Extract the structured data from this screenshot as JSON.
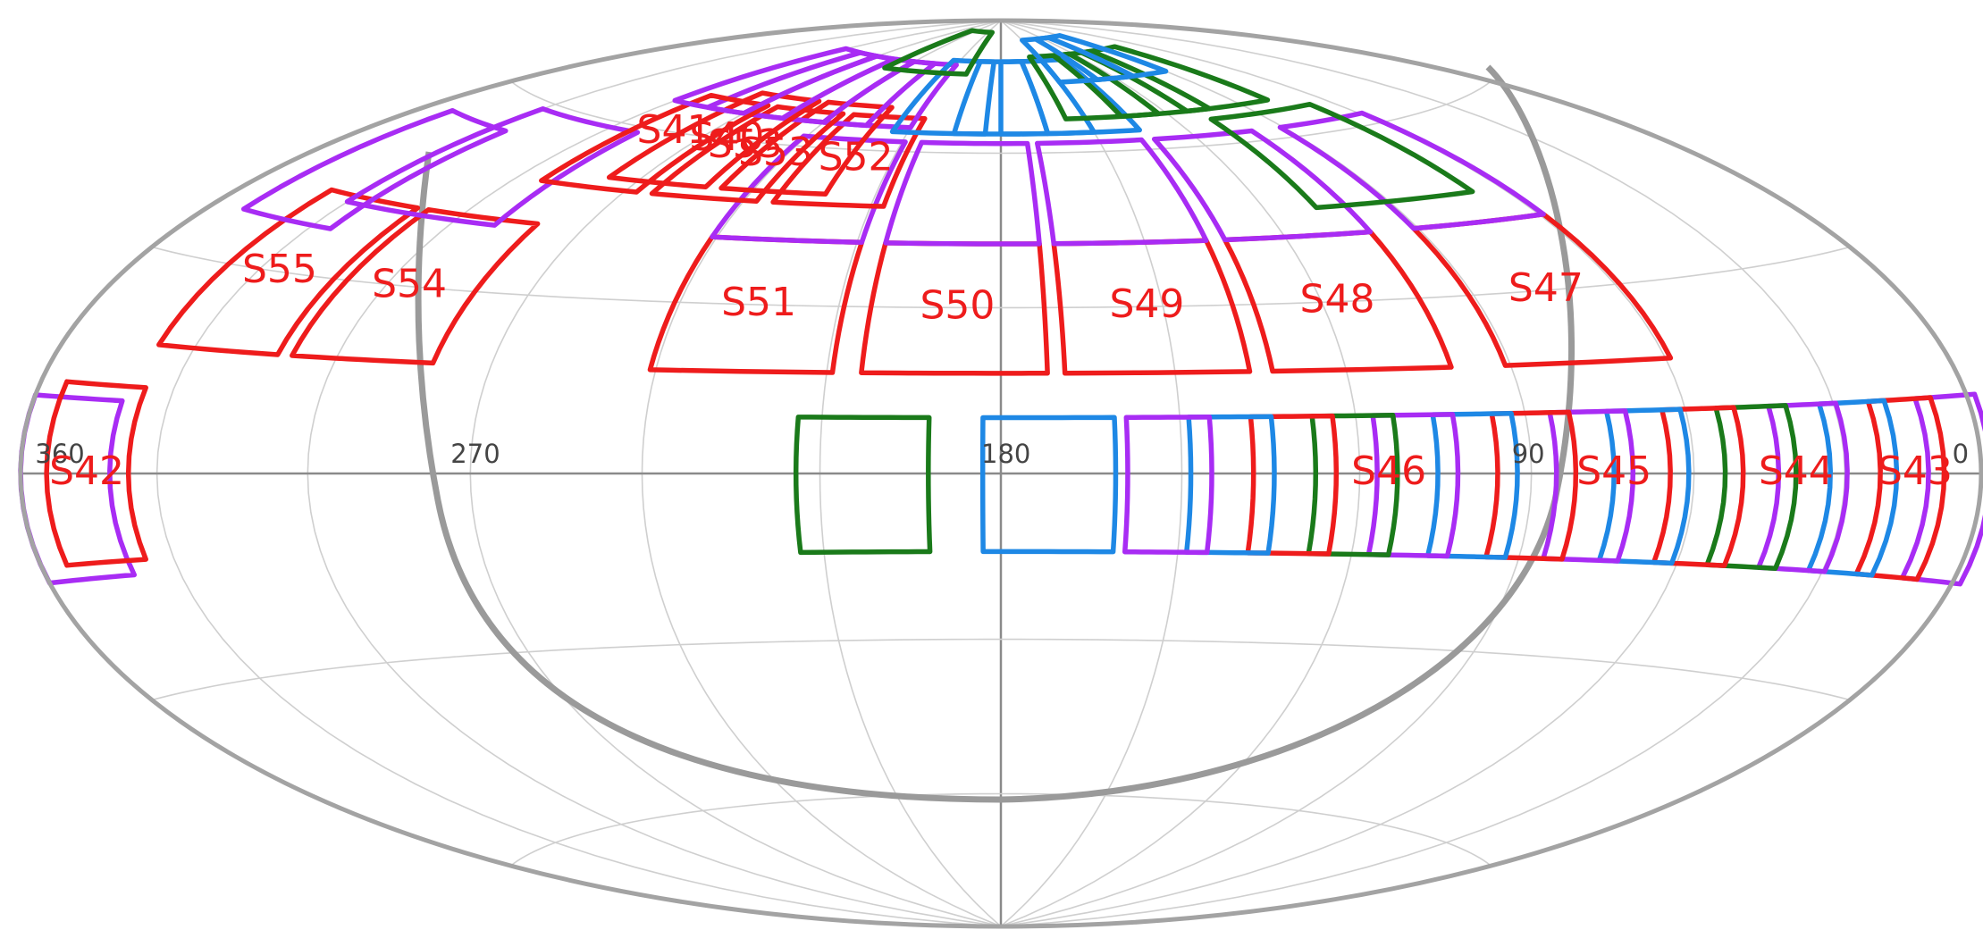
{
  "map": {
    "projection": "Aitoff/Hammer all-sky",
    "colors": {
      "red": "#ee1c1c",
      "magenta": "#a82cf4",
      "blue": "#1e88e5",
      "green": "#1a7a1a",
      "grid": "#cfcfcf",
      "outline": "#a3a3a3"
    },
    "longitude_labels": [
      {
        "text": "360",
        "lon": 360
      },
      {
        "text": "270",
        "lon": 270
      },
      {
        "text": "180",
        "lon": 180
      },
      {
        "text": "90",
        "lon": 90
      },
      {
        "text": "0",
        "lon": 0
      }
    ],
    "sectors": [
      {
        "name": "S42",
        "label": "S42",
        "lon": 345,
        "lat": 0,
        "color": "red"
      },
      {
        "name": "S43",
        "label": "S43",
        "lon": 15,
        "lat": 0,
        "color": "red"
      },
      {
        "name": "S44",
        "label": "S44",
        "lon": 40,
        "lat": 0,
        "color": "red"
      },
      {
        "name": "S45",
        "label": "S45",
        "lon": 75,
        "lat": 0,
        "color": "red"
      },
      {
        "name": "S46",
        "label": "S46",
        "lon": 115,
        "lat": 0,
        "color": "red"
      },
      {
        "name": "S47",
        "label": "S47",
        "lon": 75,
        "lat": 30,
        "color": "red"
      },
      {
        "name": "S48",
        "label": "S48",
        "lon": 117,
        "lat": 30,
        "color": "red"
      },
      {
        "name": "S49",
        "label": "S49",
        "lon": 153,
        "lat": 30,
        "color": "red"
      },
      {
        "name": "S50",
        "label": "S50",
        "lon": 188,
        "lat": 30,
        "color": "red"
      },
      {
        "name": "S51",
        "label": "S51",
        "lon": 225,
        "lat": 30,
        "color": "red"
      },
      {
        "name": "S52",
        "label": "S52",
        "lon": 220,
        "lat": 58,
        "color": "red"
      },
      {
        "name": "S53",
        "label": "S53",
        "lon": 243,
        "lat": 58,
        "color": "red"
      },
      {
        "name": "S54",
        "label": "S54",
        "lon": 295,
        "lat": 30,
        "color": "red"
      },
      {
        "name": "S55",
        "label": "S55",
        "lon": 325,
        "lat": 30,
        "color": "red"
      },
      {
        "name": "S41",
        "label": "S41",
        "lon": 280,
        "lat": 60,
        "color": "red"
      }
    ],
    "overlay_labels": [
      "S40",
      "S53"
    ]
  }
}
